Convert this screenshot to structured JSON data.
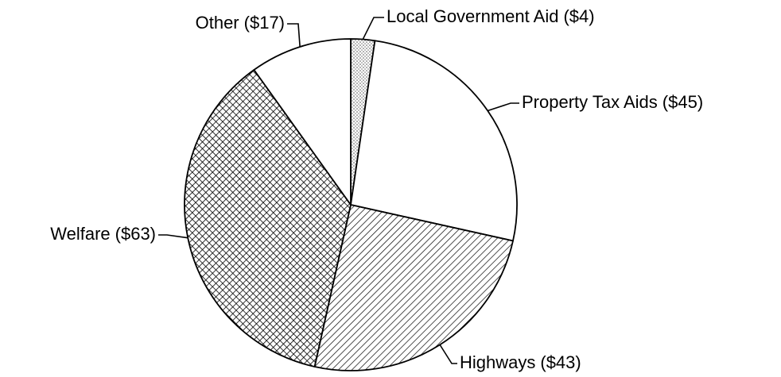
{
  "chart_data": {
    "type": "pie",
    "categories": [
      "Local Government Aid",
      "Property Tax Aids",
      "Highways",
      "Welfare",
      "Other"
    ],
    "values": [
      4,
      45,
      43,
      63,
      17
    ],
    "value_labels": [
      "($4)",
      "($45)",
      "($43)",
      "($63)",
      "($17)"
    ],
    "patterns": [
      "dots",
      "none",
      "hatch",
      "crosshatch",
      "none"
    ]
  }
}
